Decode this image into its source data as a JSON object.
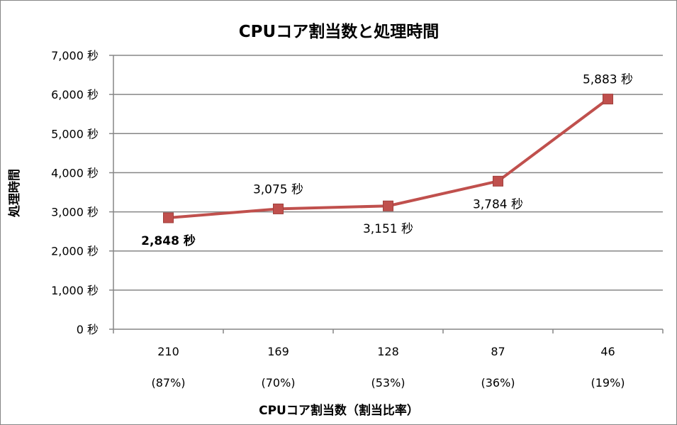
{
  "chart_data": {
    "type": "line",
    "title": "CPUコア割当数と処理時間",
    "xlabel": "CPUコア割当数（割当比率）",
    "ylabel": "処理時間",
    "categories": [
      "210",
      "169",
      "128",
      "87",
      "46"
    ],
    "category_sublabels": [
      "(87%)",
      "(70%)",
      "(53%)",
      "(36%)",
      "(19%)"
    ],
    "series": [
      {
        "values": [
          2848,
          3075,
          3151,
          3784,
          5883
        ]
      }
    ],
    "data_labels": [
      "2,848 秒",
      "3,075 秒",
      "3,151 秒",
      "3,784 秒",
      "5,883 秒"
    ],
    "highlight_index": 0,
    "ylim": [
      0,
      7000
    ],
    "yticks": [
      0,
      1000,
      2000,
      3000,
      4000,
      5000,
      6000,
      7000
    ],
    "ytick_labels": [
      "0 秒",
      "1,000 秒",
      "2,000 秒",
      "3,000 秒",
      "4,000 秒",
      "5,000 秒",
      "6,000 秒",
      "7,000 秒"
    ],
    "grid": true,
    "legend": "none",
    "colors": {
      "line": "#C0504D",
      "marker": "#C0504D",
      "highlight_label": "#FF0000",
      "grid": "#868686",
      "axis": "#868686"
    }
  }
}
